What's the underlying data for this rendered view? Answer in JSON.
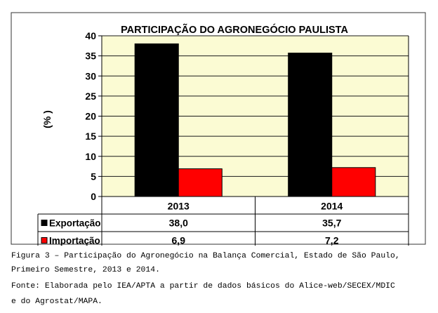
{
  "chart_data": {
    "type": "bar",
    "title": "PARTICIPAÇÃO DO AGRONEGÓCIO PAULISTA",
    "ylabel": "(% )",
    "categories": [
      "2013",
      "2014"
    ],
    "series": [
      {
        "name": "Exportação",
        "values": [
          38.0,
          35.7
        ],
        "labels": [
          "38,0",
          "35,7"
        ],
        "color": "#000000"
      },
      {
        "name": "Importação",
        "values": [
          6.9,
          7.2
        ],
        "labels": [
          "6,9",
          "7,2"
        ],
        "color": "#ff0000"
      }
    ],
    "yticks": [
      "0",
      "5",
      "10",
      "15",
      "20",
      "25",
      "30",
      "35",
      "40"
    ],
    "ylim": [
      0,
      40
    ],
    "grid": true,
    "plot_background": "#fbfbd3",
    "legend": "data-table"
  },
  "caption": {
    "line1": "Figura 3 – Participação do Agronegócio na Balança Comercial, Estado de São Paulo,",
    "line2": "Primeiro Semestre, 2013 e 2014.",
    "line3": "Fonte: Elaborada pelo IEA/APTA a partir de dados básicos do Alice-web/SECEX/MDIC",
    "line4": "e do Agrostat/MAPA."
  }
}
